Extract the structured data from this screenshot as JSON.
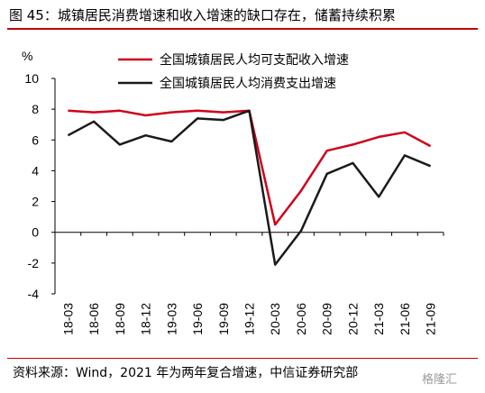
{
  "header": {
    "title": "图 45：城镇居民消费增速和收入增速的缺口存在，储蓄持续积累"
  },
  "footer": {
    "source": "资料来源：Wind，2021 年为两年复合增速，中信证券研究部",
    "watermark": "格隆汇"
  },
  "colors": {
    "accent": "#c00000",
    "income": "#d0021b",
    "consumption": "#1a1a1a"
  },
  "chart_data": {
    "type": "line",
    "ylabel": "%",
    "ylim": [
      -4,
      10
    ],
    "yticks": [
      10,
      8,
      6,
      4,
      2,
      0,
      -2,
      -4
    ],
    "grid": false,
    "legend_placement": "top-right",
    "categories": [
      "18-03",
      "18-06",
      "18-09",
      "18-12",
      "19-03",
      "19-06",
      "19-09",
      "19-12",
      "20-03",
      "20-06",
      "20-09",
      "20-12",
      "21-03",
      "21-06",
      "21-09"
    ],
    "series": [
      {
        "name": "全国城镇居民人均可支配收入增速",
        "color": "#d0021b",
        "values": [
          7.9,
          7.8,
          7.9,
          7.6,
          7.8,
          7.9,
          7.8,
          7.9,
          0.5,
          2.7,
          5.3,
          5.7,
          6.2,
          6.5,
          5.6
        ]
      },
      {
        "name": "全国城镇居民人均消费支出增速",
        "color": "#1a1a1a",
        "values": [
          6.3,
          7.2,
          5.7,
          6.3,
          5.9,
          7.4,
          7.3,
          7.9,
          -2.1,
          0.1,
          3.8,
          4.5,
          2.3,
          5.0,
          4.3
        ]
      }
    ]
  }
}
